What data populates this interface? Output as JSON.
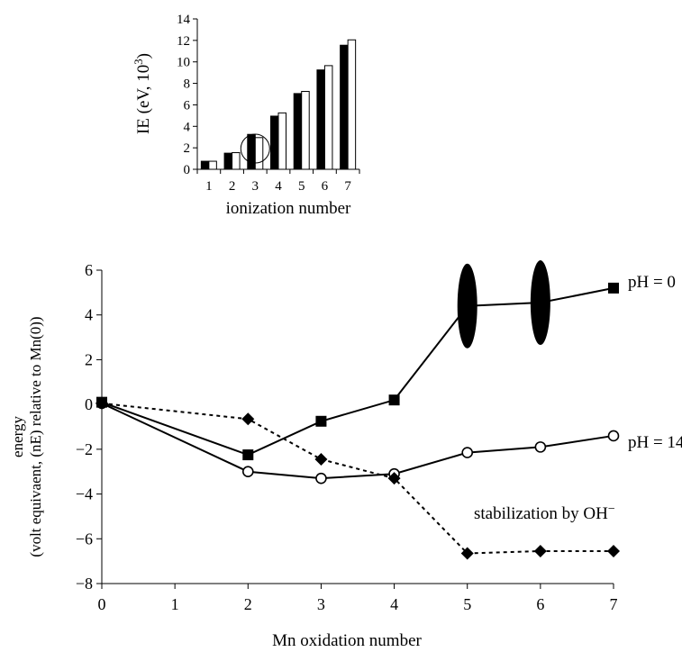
{
  "chart_data": [
    {
      "type": "bar",
      "ylabel_main": "IE (eV, 10",
      "ylabel_sup": "3",
      "ylabel_close": ")",
      "xlabel": "ionization number",
      "ylim": [
        0,
        14
      ],
      "yticks": [
        "0",
        "2",
        "4",
        "6",
        "8",
        "10",
        "12",
        "14"
      ],
      "categories": [
        "1",
        "2",
        "3",
        "4",
        "5",
        "6",
        "7"
      ],
      "series": [
        {
          "values": [
            0.75,
            1.5,
            3.25,
            4.95,
            7.05,
            9.25,
            11.55
          ],
          "color": "#000000"
        },
        {
          "values": [
            0.75,
            1.55,
            2.95,
            5.25,
            7.25,
            9.65,
            12.05
          ],
          "color": "#ffffff"
        }
      ],
      "annotation": {
        "type": "circle",
        "around_category": "3"
      }
    },
    {
      "type": "line",
      "xlabel": "Mn oxidation number",
      "ylabel_line1": "energy",
      "ylabel_line2": "(volt equivaent, (nE) relative to Mn(0))",
      "xlim": [
        0,
        7
      ],
      "ylim": [
        -8,
        6
      ],
      "xticks": [
        "0",
        "1",
        "2",
        "3",
        "4",
        "5",
        "6",
        "7"
      ],
      "yticks": [
        "−8",
        "−6",
        "−4",
        "−2",
        "0",
        "2",
        "4",
        "6"
      ],
      "series": [
        {
          "name": "pH = 0",
          "marker": "square",
          "line": "solid",
          "points": [
            [
              0,
              0.1
            ],
            [
              2,
              -2.25
            ],
            [
              3,
              -0.75
            ],
            [
              4,
              0.2
            ],
            [
              5,
              4.4
            ],
            [
              6,
              4.55
            ],
            [
              7,
              5.2
            ]
          ],
          "hidden_markers_at_x": [
            5,
            6
          ]
        },
        {
          "name": "pH = 14",
          "marker": "open-circle",
          "line": "solid",
          "points": [
            [
              0,
              0.05
            ],
            [
              2,
              -3.0
            ],
            [
              3,
              -3.3
            ],
            [
              4,
              -3.1
            ],
            [
              5,
              -2.15
            ],
            [
              6,
              -1.9
            ],
            [
              7,
              -1.4
            ]
          ]
        },
        {
          "name": "stabilization by OH",
          "name_sup": "−",
          "marker": "diamond",
          "line": "dotted",
          "points": [
            [
              0,
              0.05
            ],
            [
              2,
              -0.65
            ],
            [
              3,
              -2.45
            ],
            [
              4,
              -3.3
            ],
            [
              5,
              -6.65
            ],
            [
              6,
              -6.55
            ],
            [
              7,
              -6.55
            ]
          ]
        }
      ],
      "highlights": [
        {
          "type": "filled-ellipse",
          "at": [
            5,
            4.4
          ]
        },
        {
          "type": "filled-ellipse",
          "at": [
            6,
            4.55
          ]
        }
      ]
    }
  ]
}
